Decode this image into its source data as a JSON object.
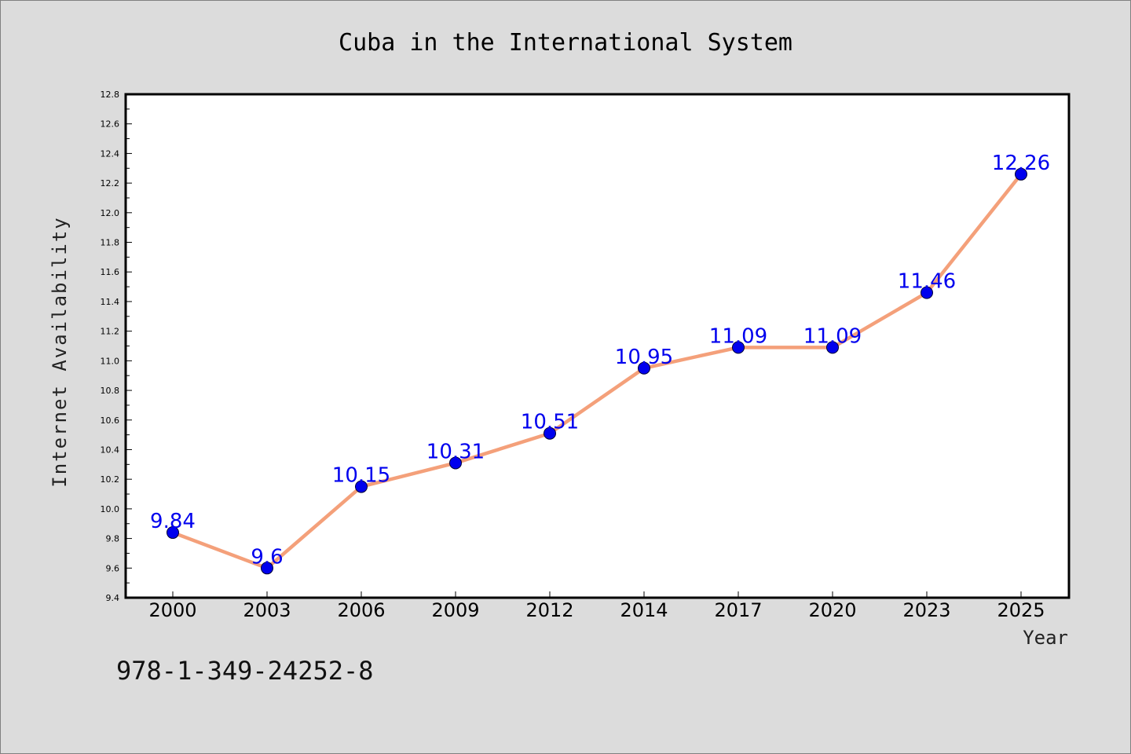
{
  "chart_data": {
    "type": "line",
    "title": "Cuba in the International System",
    "xlabel": "Year",
    "ylabel": "Internet Availability",
    "categories": [
      "2000",
      "2003",
      "2006",
      "2009",
      "2012",
      "2014",
      "2017",
      "2020",
      "2023",
      "2025"
    ],
    "series": [
      {
        "values": [
          9.84,
          9.6,
          10.15,
          10.31,
          10.51,
          10.95,
          11.09,
          11.09,
          11.46,
          12.26
        ]
      }
    ],
    "data_labels": [
      "9.84",
      "9.6",
      "10.15",
      "10.31",
      "10.51",
      "10.95",
      "11.09",
      "11.09",
      "11.46",
      "12.26"
    ],
    "ylim": [
      9.4,
      12.8
    ],
    "yticks": [
      "9.4",
      "9.6",
      "9.8",
      "10.0",
      "10.2",
      "10.4",
      "10.6",
      "10.8",
      "11.0",
      "11.2",
      "11.4",
      "11.6",
      "11.8",
      "12.0",
      "12.2",
      "12.4",
      "12.6",
      "12.8"
    ],
    "grid": false,
    "legend": "none",
    "colors": {
      "line": "#f4a07a",
      "marker": "#0000ee",
      "data_label": "#0000ee",
      "plot_background": "#ffffff",
      "figure_background": "#dcdcdc"
    }
  },
  "caption": "978-1-349-24252-8"
}
